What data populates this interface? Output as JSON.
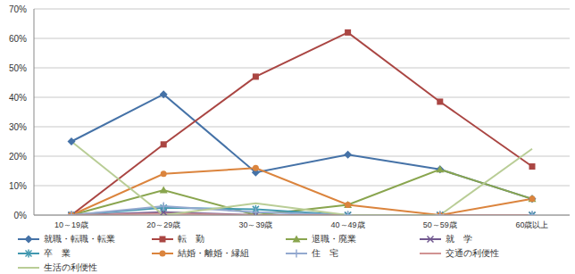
{
  "chart_data": {
    "type": "line",
    "categories": [
      "10～19歳",
      "20～29歳",
      "30～39歳",
      "40～49歳",
      "50～59歳",
      "60歳以上"
    ],
    "ylim": [
      0,
      70
    ],
    "yticks": [
      {
        "value": 0,
        "label": "0%"
      },
      {
        "value": 10,
        "label": "10%"
      },
      {
        "value": 20,
        "label": "20%"
      },
      {
        "value": 30,
        "label": "30%"
      },
      {
        "value": 40,
        "label": "40%"
      },
      {
        "value": 50,
        "label": "50%"
      },
      {
        "value": 60,
        "label": "60%"
      },
      {
        "value": 70,
        "label": "70%"
      }
    ],
    "grid": true,
    "legend": "bottom",
    "series": [
      {
        "name": "就職・転職・転業",
        "color": "#4572A7",
        "marker": "diamond",
        "values": [
          25,
          41,
          14.5,
          20.5,
          15.5,
          5.5
        ]
      },
      {
        "name": "転　勤",
        "color": "#AA4643",
        "marker": "square",
        "values": [
          0,
          24,
          47,
          62,
          38.5,
          16.5
        ]
      },
      {
        "name": "退職・廃業",
        "color": "#89A54E",
        "marker": "triangle",
        "values": [
          0,
          8.5,
          0,
          3.5,
          15.5,
          5.5
        ]
      },
      {
        "name": "就　学",
        "color": "#71588F",
        "marker": "x",
        "values": [
          0,
          1,
          0,
          0,
          0,
          0
        ]
      },
      {
        "name": "卒　業",
        "color": "#4198AF",
        "marker": "star",
        "values": [
          0,
          2.5,
          2,
          0,
          0,
          0
        ]
      },
      {
        "name": "結婚・離婚・縁組",
        "color": "#DB843D",
        "marker": "circle",
        "values": [
          0,
          14,
          16,
          3.5,
          0,
          5.5
        ]
      },
      {
        "name": "住　宅",
        "color": "#93A9CF",
        "marker": "plus",
        "values": [
          0,
          3,
          1,
          0,
          0,
          0
        ]
      },
      {
        "name": "交通の利便性",
        "color": "#D19392",
        "marker": "none",
        "values": [
          0,
          0.5,
          0,
          0,
          0,
          0
        ]
      },
      {
        "name": "生活の利便性",
        "color": "#B9CD96",
        "marker": "none",
        "values": [
          25,
          0,
          4,
          0,
          0,
          22.5
        ]
      }
    ]
  }
}
